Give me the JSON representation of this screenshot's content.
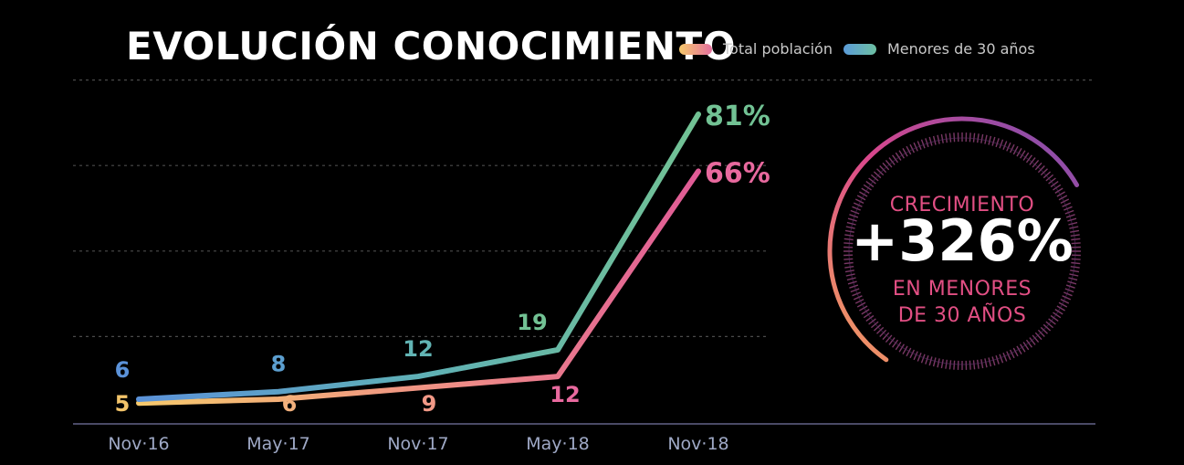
{
  "title": "EVOLUCIÓN CONOCIMIENTO",
  "chart_data": {
    "type": "line",
    "title": "EVOLUCIÓN CONOCIMIENTO",
    "categories": [
      "Nov·16",
      "May·17",
      "Nov·17",
      "May·18",
      "Nov·18"
    ],
    "series": [
      {
        "name": "Total población",
        "values": [
          5,
          6,
          9,
          12,
          66
        ],
        "labels": [
          "5",
          "6",
          "9",
          "12",
          "66%"
        ]
      },
      {
        "name": "Menores de 30 años",
        "values": [
          6,
          8,
          12,
          19,
          81
        ],
        "labels": [
          "6",
          "8",
          "12",
          "19",
          "81%"
        ]
      }
    ],
    "ylim": [
      0,
      100
    ],
    "grid": true,
    "legend": "top"
  },
  "callout": {
    "line1": "CRECIMIENTO",
    "value": "+326%",
    "line2": "EN MENORES",
    "line3": "DE 30 AÑOS"
  },
  "colors": {
    "total_start": "#f6c96c",
    "total_end": "#e46f9e",
    "young_start": "#5b9bd9",
    "young_end": "#6dc0a2",
    "accent_pink": "#e24f84",
    "ring_purple": "#7a4fb0"
  }
}
